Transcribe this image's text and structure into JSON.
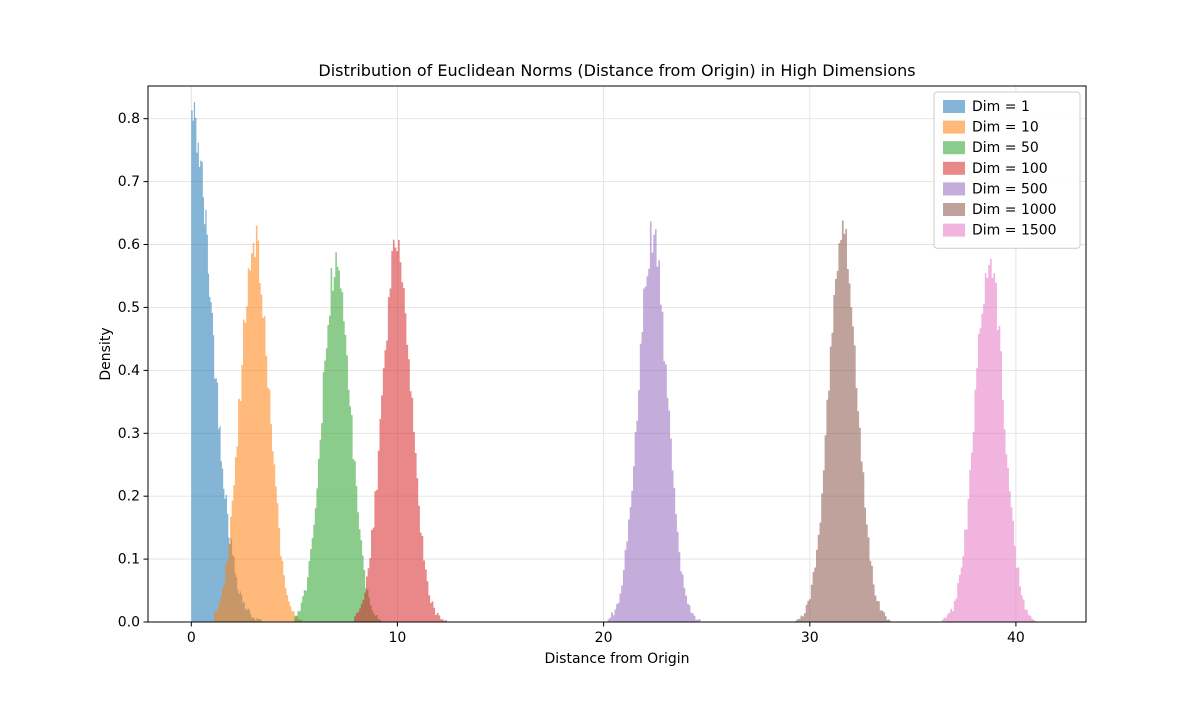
{
  "figure": {
    "background": "#ffffff"
  },
  "chart_data": {
    "type": "histogram",
    "title": "Distribution of Euclidean Norms (Distance from Origin) in High Dimensions",
    "xlabel": "Distance from Origin",
    "ylabel": "Density",
    "xlim": [
      -2.1,
      43.4
    ],
    "ylim": [
      0,
      0.852
    ],
    "xticks": [
      0,
      10,
      20,
      30,
      40
    ],
    "xtick_labels": [
      "0",
      "10",
      "20",
      "30",
      "40"
    ],
    "yticks": [
      0.0,
      0.1,
      0.2,
      0.3,
      0.4,
      0.5,
      0.6,
      0.7,
      0.8
    ],
    "ytick_labels": [
      "0.0",
      "0.1",
      "0.2",
      "0.3",
      "0.4",
      "0.5",
      "0.6",
      "0.7",
      "0.8"
    ],
    "grid": true,
    "legend_position": "upper right",
    "bar_alpha": 0.55,
    "series": [
      {
        "name": "Dim = 1",
        "color": "#1f77b4",
        "distribution": "half_normal",
        "mean": 0,
        "sd": 1.0,
        "peak_density": 0.805,
        "peak_x": 0.1,
        "range": [
          0.0,
          3.4
        ],
        "bins": 55
      },
      {
        "name": "Dim = 10",
        "color": "#ff7f0e",
        "distribution": "normal",
        "mean": 3.08,
        "sd": 0.7,
        "peak_density": 0.605,
        "peak_x": 3.1,
        "range": [
          1.1,
          5.4
        ],
        "bins": 55
      },
      {
        "name": "Dim = 50",
        "color": "#2ca02c",
        "distribution": "normal",
        "mean": 7.04,
        "sd": 0.68,
        "peak_density": 0.57,
        "peak_x": 7.0,
        "range": [
          5.0,
          9.2
        ],
        "bins": 55
      },
      {
        "name": "Dim = 100",
        "color": "#d62728",
        "distribution": "normal",
        "mean": 9.98,
        "sd": 0.7,
        "peak_density": 0.6,
        "peak_x": 10.0,
        "range": [
          7.9,
          12.4
        ],
        "bins": 55
      },
      {
        "name": "Dim = 500",
        "color": "#9467bd",
        "distribution": "normal",
        "mean": 22.38,
        "sd": 0.7,
        "peak_density": 0.61,
        "peak_x": 22.4,
        "range": [
          20.2,
          24.7
        ],
        "bins": 55
      },
      {
        "name": "Dim = 1000",
        "color": "#8c564b",
        "distribution": "normal",
        "mean": 31.62,
        "sd": 0.7,
        "peak_density": 0.61,
        "peak_x": 31.6,
        "range": [
          29.3,
          33.9
        ],
        "bins": 55
      },
      {
        "name": "Dim = 1500",
        "color": "#e377c2",
        "distribution": "normal",
        "mean": 38.72,
        "sd": 0.7,
        "peak_density": 0.57,
        "peak_x": 38.7,
        "range": [
          36.4,
          41.0
        ],
        "bins": 55
      }
    ]
  }
}
